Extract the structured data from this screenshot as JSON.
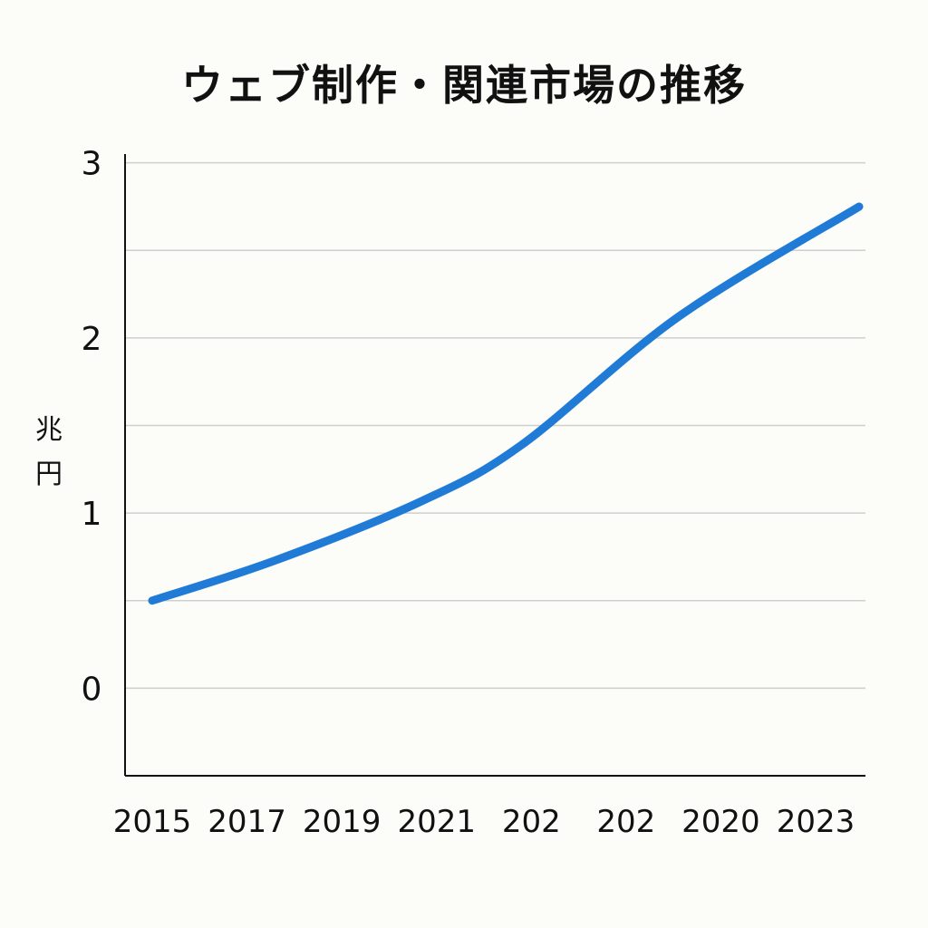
{
  "chart_data": {
    "type": "line",
    "title": "ウェブ制作・関連市場の推移",
    "xlabel": "",
    "ylabel": "兆円",
    "x_tick_labels": [
      "2015",
      "2017",
      "2019",
      "2021",
      "202",
      "202",
      "2020",
      "2023"
    ],
    "y_tick_labels": [
      "0",
      "1",
      "2",
      "3"
    ],
    "ylim": [
      -0.5,
      3.05
    ],
    "grid": true,
    "legend": "none",
    "line_color": "#1f7bd6",
    "series": [
      {
        "values": [
          0.5,
          0.73,
          1.07,
          1.39,
          2.12,
          2.75
        ],
        "x_positions": [
          0,
          1.3,
          2.85,
          3.9,
          5.55,
          7.25
        ]
      }
    ]
  }
}
